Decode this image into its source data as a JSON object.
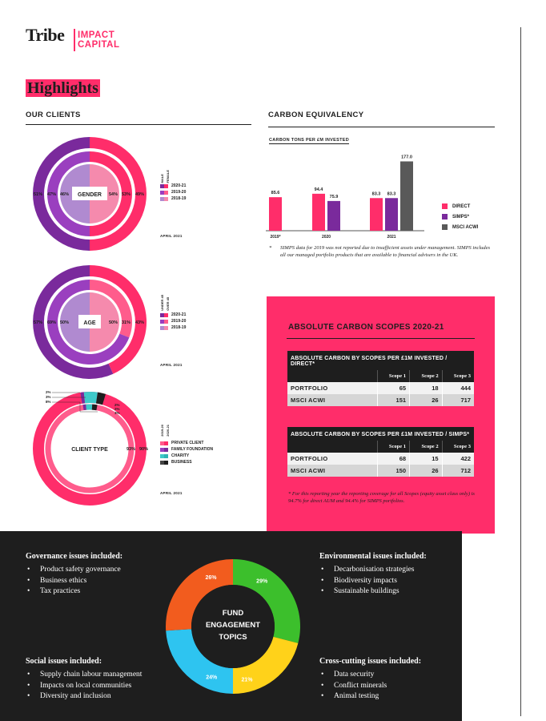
{
  "logo": {
    "brand": "Tribe",
    "sub_line1": "IMPACT",
    "sub_line2": "CAPITAL"
  },
  "page_title": "Highlights",
  "clients": {
    "heading": "OUR CLIENTS",
    "gender": {
      "label": "GENDER",
      "legend": [
        "2020-21",
        "2019-20",
        "2018-19"
      ],
      "vert_labels": [
        "MALE",
        "FEMALE"
      ],
      "date": "APRIL 2021",
      "left_values": [
        "51%",
        "47%",
        "46%"
      ],
      "right_values": [
        "54%",
        "53%",
        "49%"
      ]
    },
    "age": {
      "label": "AGE",
      "legend": [
        "2020-21",
        "2019-20",
        "2018-19"
      ],
      "vert_labels": [
        "UNDER 45",
        "OVER 45"
      ],
      "date": "APRIL 2021",
      "left_values": [
        "57%",
        "69%",
        "50%"
      ],
      "right_values": [
        "50%",
        "31%",
        "43%"
      ]
    },
    "client_type": {
      "label": "CLIENT TYPE",
      "legend": [
        "PRIVATE CLIENT",
        "FAMILY FOUNDATION",
        "CHARITY",
        "BUSINESS"
      ],
      "vert_labels": [
        "2019-20",
        "2020-21"
      ],
      "date": "APRIL 2021",
      "outer_values": [
        "2%",
        "3%",
        "8%"
      ],
      "inner_values": [
        "2%",
        "2%",
        "3%"
      ],
      "right_values": [
        "93%",
        "90%"
      ]
    }
  },
  "carbon": {
    "heading": "CARBON EQUIVALENCY",
    "subheading": "CARBON TONS PER £M INVESTED",
    "legend": [
      "DIRECT",
      "SIMPS*",
      "MSCI ACWI"
    ],
    "note_star": "*",
    "note": "SIMPS data for 2019 was not reported due to insufficient assets under management. SIMPS includes all our managed portfolio products that are available to financial advisers in the UK."
  },
  "chart_data": {
    "type": "bar",
    "categories": [
      "2019*",
      "2020",
      "2021"
    ],
    "series": [
      {
        "name": "DIRECT",
        "values": [
          85.6,
          94.4,
          83.3
        ]
      },
      {
        "name": "SIMPS*",
        "values": [
          null,
          75.9,
          83.3
        ]
      },
      {
        "name": "MSCI ACWI",
        "values": [
          null,
          null,
          177.0
        ]
      }
    ],
    "value_labels": [
      [
        "85.6",
        "",
        ""
      ],
      [
        "94.4",
        "75.9",
        ""
      ],
      [
        "83.3",
        "83.3",
        "177.0"
      ]
    ],
    "title": "CARBON TONS PER £M INVESTED",
    "xlabel": "",
    "ylabel": "",
    "ylim": [
      0,
      180
    ],
    "grid": false,
    "legend": "right",
    "colors": {
      "DIRECT": "#ff2d6a",
      "SIMPS*": "#7a2a9c",
      "MSCI ACWI": "#595959"
    }
  },
  "scopes": {
    "title": "ABSOLUTE CARBON SCOPES 2020-21",
    "table1": {
      "caption": "ABSOLUTE CARBON BY SCOPES PER £1M INVESTED / DIRECT*",
      "columns": [
        "Scope 1",
        "Scope 2",
        "Scope 3"
      ],
      "rows": [
        {
          "label": "PORTFOLIO",
          "values": [
            "65",
            "18",
            "444"
          ]
        },
        {
          "label": "MSCI ACWI",
          "values": [
            "151",
            "26",
            "717"
          ]
        }
      ]
    },
    "table2": {
      "caption": "ABSOLUTE CARBON BY SCOPES PER £1M INVESTED / SIMPS*",
      "columns": [
        "Scope 1",
        "Scope 2",
        "Scope 3"
      ],
      "rows": [
        {
          "label": "PORTFOLIO",
          "values": [
            "68",
            "15",
            "422"
          ]
        },
        {
          "label": "MSCI ACWI",
          "values": [
            "150",
            "26",
            "712"
          ]
        }
      ]
    },
    "note": "* For this reporting year the reporting coverage for all Scopes (equity asset class only) is 94.7% for direct AUM and 94.4% for SIMPS portfolios."
  },
  "engagement": {
    "title_lines": [
      "FUND",
      "ENGAGEMENT",
      "TOPICS"
    ],
    "segments": [
      {
        "label": "29%",
        "value": 29,
        "color": "#3cbf2c"
      },
      {
        "label": "21%",
        "value": 21,
        "color": "#ffd21a"
      },
      {
        "label": "24%",
        "value": 24,
        "color": "#2ec4f0"
      },
      {
        "label": "26%",
        "value": 26,
        "color": "#f25c1e"
      }
    ],
    "governance": {
      "title": "Governance issues included:",
      "items": [
        "Product safety governance",
        "Business ethics",
        "Tax practices"
      ]
    },
    "environmental": {
      "title": "Environmental issues included:",
      "items": [
        "Decarbonisation strategies",
        "Biodiversity impacts",
        "Sustainable buildings"
      ]
    },
    "social": {
      "title": "Social issues included:",
      "items": [
        "Supply chain labour management",
        "Impacts on local communities",
        "Diversity and inclusion"
      ]
    },
    "crosscutting": {
      "title": "Cross-cutting issues included:",
      "items": [
        "Data security",
        "Conflict minerals",
        "Animal testing"
      ]
    }
  },
  "colors": {
    "pink": "#ff2d6a",
    "purple": "#7a2a9c",
    "light_purple": "#b08ad0",
    "light_pink": "#f58aad",
    "dark": "#1e1e1e",
    "grey": "#595959",
    "teal": "#3ec9c9"
  }
}
